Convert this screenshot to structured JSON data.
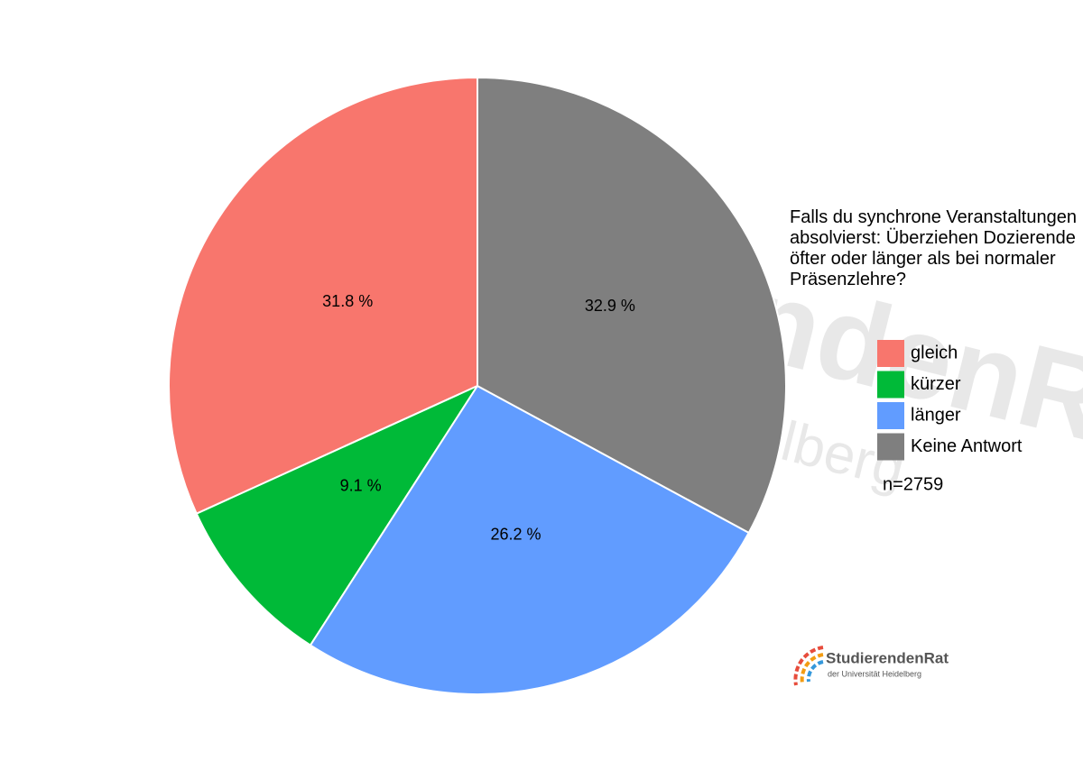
{
  "chart_data": {
    "type": "pie",
    "title": "Falls du synchrone Veranstaltungen absolvierst: Überziehen Dozierende öfter oder länger als bei normaler Präsenzlehre?",
    "categories": [
      "gleich",
      "kürzer",
      "länger",
      "Keine Antwort"
    ],
    "values": [
      31.8,
      9.1,
      26.2,
      32.9
    ],
    "value_labels": [
      "31.8 %",
      "9.1 %",
      "26.2 %",
      "32.9 %"
    ],
    "colors": [
      "#f8766d",
      "#00ba38",
      "#619cff",
      "#7f7f7f"
    ],
    "legend": "right",
    "annotation": "n=2759",
    "logo": {
      "name": "StudierendenRat",
      "subtitle": "der Universität Heidelberg"
    }
  }
}
